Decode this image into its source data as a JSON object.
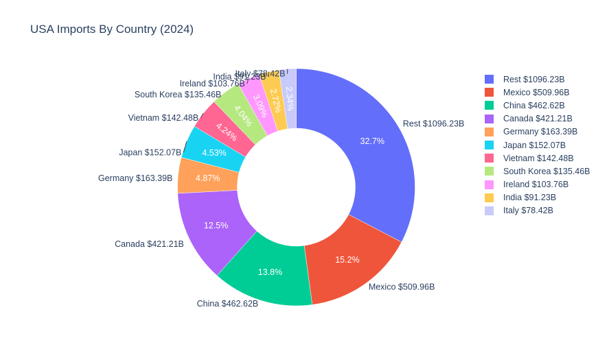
{
  "chart_data": {
    "type": "pie",
    "hole": true,
    "title": "USA Imports By Country (2024)",
    "value_prefix": "$",
    "value_suffix": "B",
    "categories": [
      "Rest",
      "Mexico",
      "China",
      "Canada",
      "Germany",
      "Japan",
      "Vietnam",
      "South Korea",
      "Ireland",
      "India",
      "Italy"
    ],
    "values": [
      1096.23,
      509.96,
      462.62,
      421.21,
      163.39,
      152.07,
      142.48,
      135.46,
      103.76,
      91.23,
      78.42
    ],
    "percent_labels": [
      "32.7%",
      "15.2%",
      "13.8%",
      "12.5%",
      "4.87%",
      "4.53%",
      "4.24%",
      "4.04%",
      "3.09%",
      "2.72%",
      "2.34%"
    ],
    "outside_labels": [
      "Rest $1096.23B",
      "Mexico $509.96B",
      "China $462.62B",
      "Canada $421.21B",
      "Germany $163.39B",
      "Japan $152.07B",
      "Vietnam $142.48B",
      "South Korea $135.46B",
      "Ireland $103.76B",
      "India $91.23B",
      "Italy $78.42B"
    ],
    "colors": [
      "#636efa",
      "#ef553b",
      "#00cc96",
      "#ab63fa",
      "#ffa15a",
      "#19d3f3",
      "#ff6692",
      "#b6e880",
      "#ff97ff",
      "#fecb52",
      "#c8cafc"
    ],
    "legend_position": "right"
  }
}
